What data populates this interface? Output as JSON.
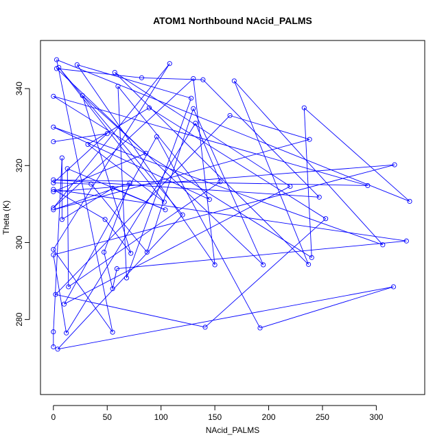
{
  "chart_data": {
    "type": "line",
    "title": "ATOM1 Northbound NAcid_PALMS",
    "xlabel": "NAcid_PALMS",
    "ylabel": "Theta (K)",
    "xlim": [
      -12,
      345
    ],
    "ylim": [
      260.5,
      352.5
    ],
    "xticks": [
      0,
      50,
      100,
      150,
      200,
      250,
      300
    ],
    "yticks": [
      280,
      300,
      320,
      340
    ],
    "grid": false,
    "marker": "open-circle",
    "color": "#0000ff",
    "series": [
      {
        "points": [
          [
            0,
            326.2
          ],
          [
            50,
            328.3
          ],
          [
            0,
            315.5
          ],
          [
            35,
            315.2
          ],
          [
            87,
            297.5
          ],
          [
            130,
            334.8
          ],
          [
            195,
            294.2
          ],
          [
            3,
            345.2
          ],
          [
            82,
            342.8
          ],
          [
            139,
            342.3
          ],
          [
            247,
            311.8
          ],
          [
            0,
            316.3
          ],
          [
            292,
            314.8
          ],
          [
            0,
            338
          ],
          [
            240,
            296.1
          ],
          [
            233,
            335
          ],
          [
            331,
            310.7
          ],
          [
            3,
            347.5
          ],
          [
            55,
            276.7
          ],
          [
            0,
            298.2
          ],
          [
            108,
            346.5
          ],
          [
            0,
            309
          ],
          [
            130,
            342.6
          ],
          [
            150,
            294.2
          ],
          [
            22,
            346.2
          ],
          [
            128,
            337.5
          ],
          [
            68,
            290.8
          ],
          [
            60,
            340.6
          ],
          [
            145,
            311.2
          ],
          [
            0,
            330
          ],
          [
            306,
            299.4
          ],
          [
            168,
            342
          ],
          [
            237,
            294.3
          ],
          [
            57,
            344.2
          ],
          [
            220,
            314.6
          ],
          [
            10,
            284
          ],
          [
            96,
            327.5
          ],
          [
            192,
            277.8
          ],
          [
            316,
            288.5
          ],
          [
            4,
            272.3
          ],
          [
            120,
            307.2
          ],
          [
            5,
            345.5
          ],
          [
            103,
            310.5
          ],
          [
            32,
            325.5
          ],
          [
            89,
            335
          ],
          [
            253,
            306.2
          ],
          [
            141,
            278
          ],
          [
            2,
            286.5
          ],
          [
            164,
            333
          ],
          [
            238,
            326.8
          ],
          [
            0,
            308.5
          ],
          [
            71,
            315.5
          ],
          [
            47,
            297.5
          ],
          [
            55,
            288
          ],
          [
            59,
            293.2
          ],
          [
            328,
            300.4
          ],
          [
            0,
            313.8
          ],
          [
            48,
            306
          ],
          [
            72,
            297.2
          ],
          [
            27,
            338.2
          ],
          [
            86,
            323.2
          ],
          [
            0,
            313.2
          ],
          [
            317,
            320.2
          ],
          [
            0,
            296.8
          ],
          [
            12,
            276.5
          ],
          [
            132,
            331
          ],
          [
            155,
            315.8
          ],
          [
            14,
            288.5
          ],
          [
            13,
            319.2
          ],
          [
            104,
            308.5
          ],
          [
            55,
            314.1
          ],
          [
            8,
            306
          ],
          [
            8,
            322
          ],
          [
            0,
            276.8
          ],
          [
            0,
            272.9
          ]
        ]
      }
    ]
  }
}
